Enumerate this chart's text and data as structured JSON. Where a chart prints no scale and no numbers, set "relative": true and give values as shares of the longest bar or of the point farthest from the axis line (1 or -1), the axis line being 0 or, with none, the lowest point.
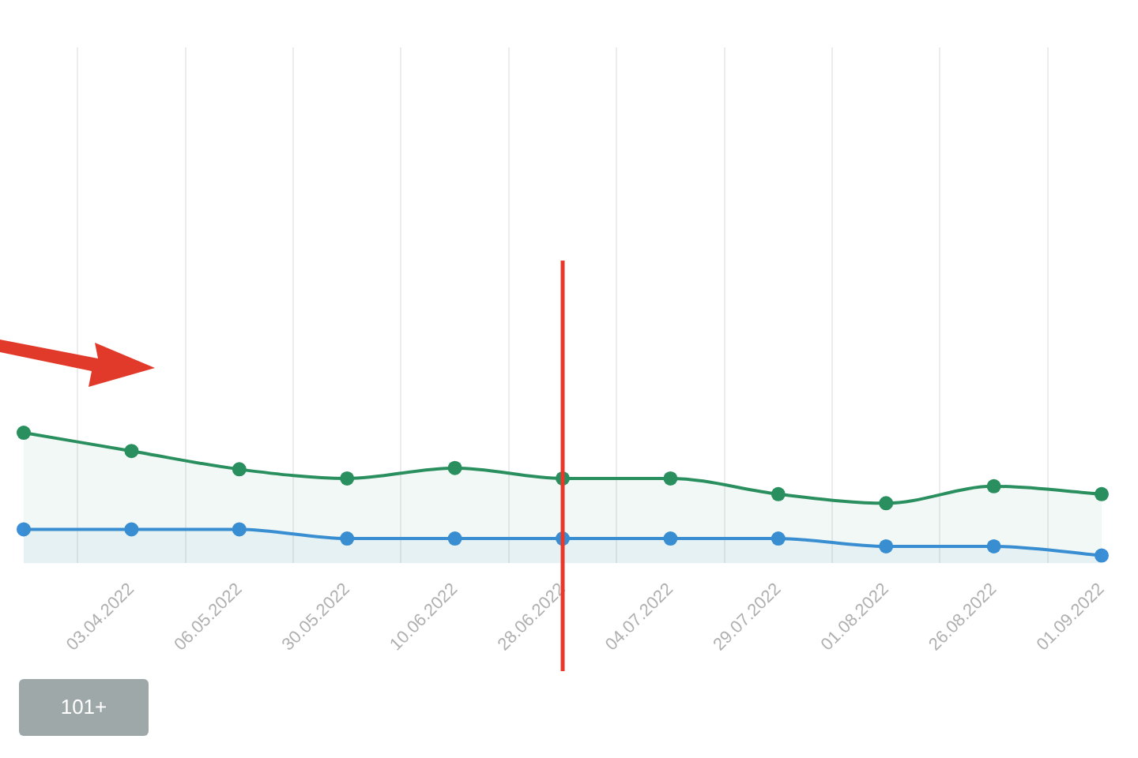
{
  "chart_data": {
    "type": "area",
    "relative": true,
    "categories": [
      null,
      "03.04.2022",
      "06.05.2022",
      "30.05.2022",
      "10.06.2022",
      "28.06.2022",
      "04.07.2022",
      "29.07.2022",
      "01.08.2022",
      "26.08.2022",
      "01.09.2022"
    ],
    "series": [
      {
        "color": "#2a8f5e",
        "values": [
          1,
          0.86,
          0.72,
          0.65,
          0.73,
          0.65,
          0.65,
          0.53,
          0.46,
          0.59,
          0.53
        ]
      },
      {
        "color": "#3a8fd8",
        "values": [
          0.26,
          0.26,
          0.26,
          0.19,
          0.19,
          0.19,
          0.19,
          0.19,
          0.13,
          0.13,
          0.06
        ]
      }
    ],
    "marker": "circle",
    "grid": "x",
    "legend": false,
    "ref_lines": [
      {
        "axis": "x",
        "value": "28.06.2022",
        "color": "#e8382c"
      }
    ],
    "annotations": [
      "101+"
    ]
  }
}
